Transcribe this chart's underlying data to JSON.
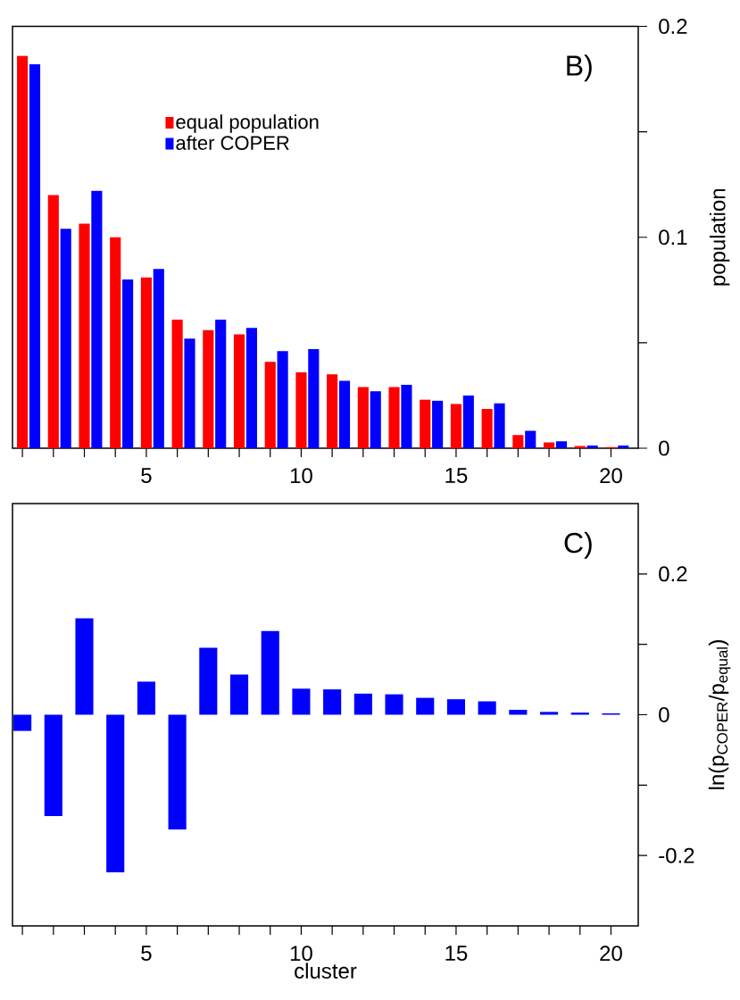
{
  "chart_data": [
    {
      "type": "bar",
      "x": [
        1,
        2,
        3,
        4,
        5,
        6,
        7,
        8,
        9,
        10,
        11,
        12,
        13,
        14,
        15,
        16,
        17,
        18,
        19,
        20
      ],
      "xlim": [
        0.68,
        20.88
      ],
      "xticks": [
        {
          "value": 1,
          "label": null
        },
        {
          "value": 2,
          "label": null
        },
        {
          "value": 3,
          "label": null
        },
        {
          "value": 4,
          "label": null
        },
        5,
        {
          "value": 6,
          "label": null
        },
        {
          "value": 7,
          "label": null
        },
        {
          "value": 8,
          "label": null
        },
        {
          "value": 9,
          "label": null
        },
        10,
        {
          "value": 11,
          "label": null
        },
        {
          "value": 12,
          "label": null
        },
        {
          "value": 13,
          "label": null
        },
        {
          "value": 14,
          "label": null
        },
        15,
        {
          "value": 16,
          "label": null
        },
        {
          "value": 17,
          "label": null
        },
        {
          "value": 18,
          "label": null
        },
        {
          "value": 19,
          "label": null
        },
        20
      ],
      "ylim": [
        0,
        0.2
      ],
      "yticks": [
        0,
        {
          "value": 0.05,
          "label": null
        },
        0.1,
        {
          "value": 0.15,
          "label": null
        },
        0.2
      ],
      "ylabel": "population",
      "legend": "top left",
      "annotations": [
        "B)"
      ],
      "series": [
        {
          "name": "equal population",
          "color": "#ff0000",
          "values": [
            0.186,
            0.12,
            0.1065,
            0.1,
            0.081,
            0.061,
            0.056,
            0.054,
            0.041,
            0.036,
            0.035,
            0.029,
            0.029,
            0.023,
            0.021,
            0.0186,
            0.0062,
            0.0027,
            0.0011,
            0.0005
          ]
        },
        {
          "name": "after COPER",
          "color": "#0000ff",
          "values": [
            0.182,
            0.104,
            0.122,
            0.08,
            0.085,
            0.052,
            0.061,
            0.057,
            0.046,
            0.047,
            0.032,
            0.027,
            0.03,
            0.0225,
            0.025,
            0.0213,
            0.0083,
            0.0033,
            0.0013,
            0.0013
          ]
        }
      ]
    },
    {
      "type": "bar",
      "x": [
        1,
        2,
        3,
        4,
        5,
        6,
        7,
        8,
        9,
        10,
        11,
        12,
        13,
        14,
        15,
        16,
        17,
        18,
        19,
        20
      ],
      "xlim": [
        0.68,
        20.88
      ],
      "xticks": [
        {
          "value": 1,
          "label": null
        },
        {
          "value": 2,
          "label": null
        },
        {
          "value": 3,
          "label": null
        },
        {
          "value": 4,
          "label": null
        },
        5,
        {
          "value": 6,
          "label": null
        },
        {
          "value": 7,
          "label": null
        },
        {
          "value": 8,
          "label": null
        },
        {
          "value": 9,
          "label": null
        },
        10,
        {
          "value": 11,
          "label": null
        },
        {
          "value": 12,
          "label": null
        },
        {
          "value": 13,
          "label": null
        },
        {
          "value": 14,
          "label": null
        },
        15,
        {
          "value": 16,
          "label": null
        },
        {
          "value": 17,
          "label": null
        },
        {
          "value": 18,
          "label": null
        },
        {
          "value": 19,
          "label": null
        },
        20
      ],
      "ylim": [
        -0.3,
        0.3
      ],
      "yticks": [
        -0.2,
        {
          "value": -0.1,
          "label": null
        },
        0,
        {
          "value": 0.1,
          "label": null
        },
        0.2
      ],
      "xlabel": "cluster",
      "ylabel": "ln(p$_{COPER}$/p$_{equal}$)",
      "annotations": [
        "C)"
      ],
      "color": "#0000ff",
      "values": [
        -0.023,
        -0.144,
        0.137,
        -0.224,
        0.047,
        -0.163,
        0.095,
        0.057,
        0.119,
        0.037,
        0.036,
        0.03,
        0.029,
        0.024,
        0.022,
        0.019,
        0.007,
        0.004,
        0.003,
        0.002
      ]
    }
  ]
}
